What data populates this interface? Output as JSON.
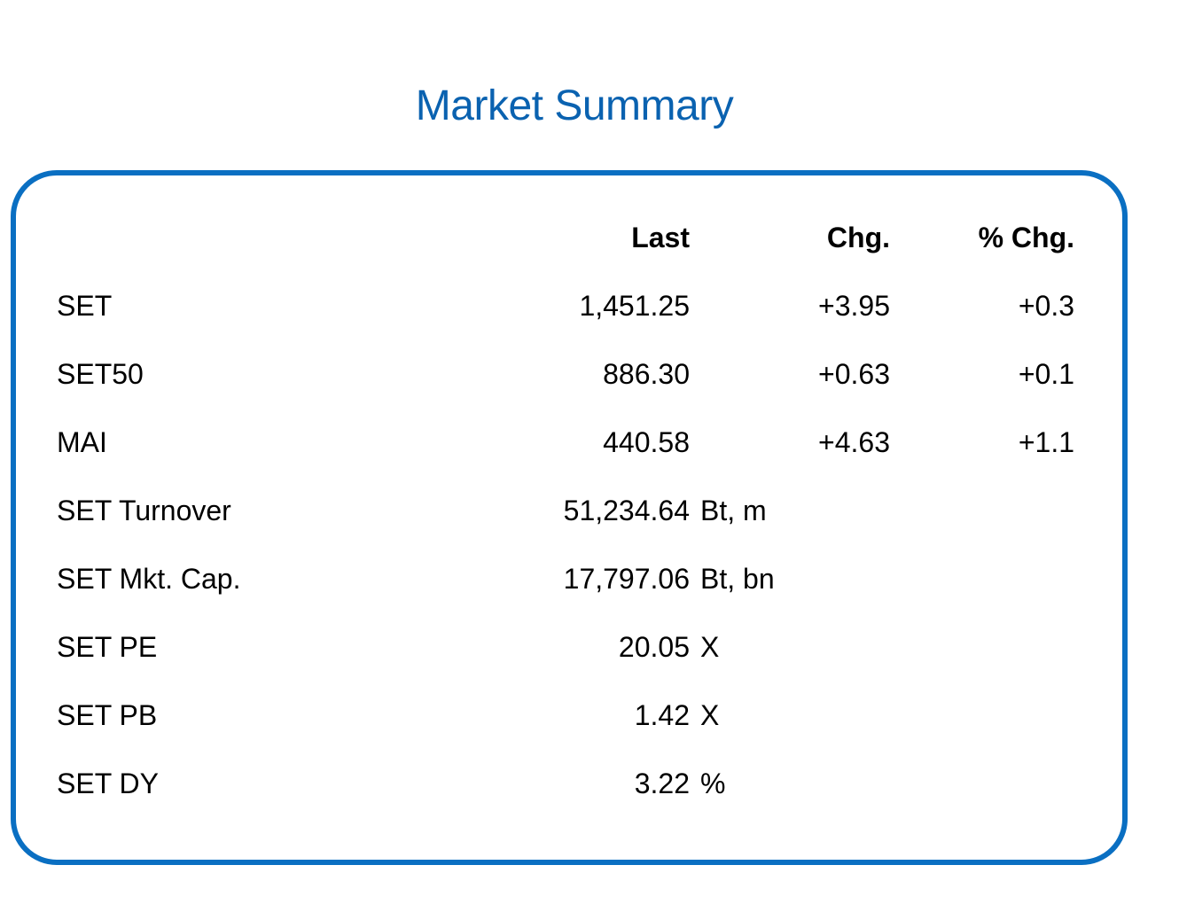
{
  "title": "Market Summary",
  "colors": {
    "title": "#0a62b0",
    "border": "#0a6fc2"
  },
  "headers": {
    "last": "Last",
    "chg": "Chg.",
    "pct_chg": "% Chg."
  },
  "rows": [
    {
      "label": "SET",
      "last": "1,451.25",
      "unit": "",
      "chg": "+3.95",
      "pct_chg": "+0.3"
    },
    {
      "label": "SET50",
      "last": "886.30",
      "unit": "",
      "chg": "+0.63",
      "pct_chg": "+0.1"
    },
    {
      "label": "MAI",
      "last": "440.58",
      "unit": "",
      "chg": "+4.63",
      "pct_chg": "+1.1"
    },
    {
      "label": "SET Turnover",
      "last": "51,234.64",
      "unit": "Bt, m",
      "chg": "",
      "pct_chg": ""
    },
    {
      "label": "SET Mkt. Cap.",
      "last": "17,797.06",
      "unit": "Bt, bn",
      "chg": "",
      "pct_chg": ""
    },
    {
      "label": "SET PE",
      "last": "20.05",
      "unit": "X",
      "chg": "",
      "pct_chg": ""
    },
    {
      "label": "SET PB",
      "last": "1.42",
      "unit": "X",
      "chg": "",
      "pct_chg": ""
    },
    {
      "label": "SET DY",
      "last": "3.22",
      "unit": "%",
      "chg": "",
      "pct_chg": ""
    }
  ]
}
